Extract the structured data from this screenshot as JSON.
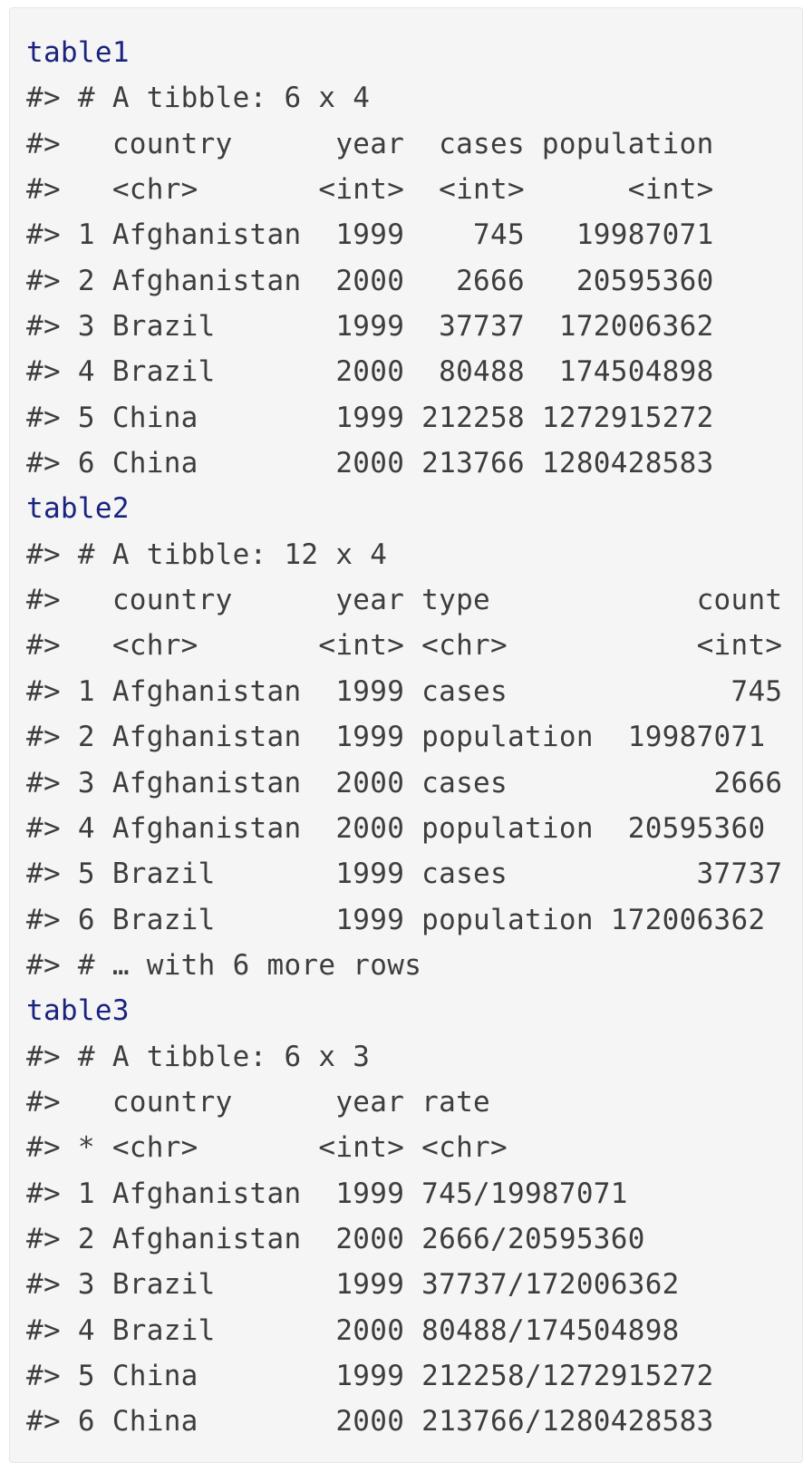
{
  "console": {
    "colors": {
      "background": "#f5f5f5",
      "command_text": "#1a237e",
      "output_text": "#3d3d3d"
    },
    "lines": [
      {
        "kind": "command",
        "text": "table1"
      },
      {
        "kind": "output",
        "text": "#> # A tibble: 6 x 4"
      },
      {
        "kind": "output",
        "text": "#>   country      year  cases population"
      },
      {
        "kind": "output",
        "text": "#>   <chr>       <int>  <int>      <int>"
      },
      {
        "kind": "output",
        "text": "#> 1 Afghanistan  1999    745   19987071"
      },
      {
        "kind": "output",
        "text": "#> 2 Afghanistan  2000   2666   20595360"
      },
      {
        "kind": "output",
        "text": "#> 3 Brazil       1999  37737  172006362"
      },
      {
        "kind": "output",
        "text": "#> 4 Brazil       2000  80488  174504898"
      },
      {
        "kind": "output",
        "text": "#> 5 China        1999 212258 1272915272"
      },
      {
        "kind": "output",
        "text": "#> 6 China        2000 213766 1280428583"
      },
      {
        "kind": "command",
        "text": "table2"
      },
      {
        "kind": "output",
        "text": "#> # A tibble: 12 x 4"
      },
      {
        "kind": "output",
        "text": "#>   country      year type            count"
      },
      {
        "kind": "output",
        "text": "#>   <chr>       <int> <chr>           <int>"
      },
      {
        "kind": "output",
        "text": "#> 1 Afghanistan  1999 cases             745"
      },
      {
        "kind": "output",
        "text": "#> 2 Afghanistan  1999 population  19987071"
      },
      {
        "kind": "output",
        "text": "#> 3 Afghanistan  2000 cases            2666"
      },
      {
        "kind": "output",
        "text": "#> 4 Afghanistan  2000 population  20595360"
      },
      {
        "kind": "output",
        "text": "#> 5 Brazil       1999 cases           37737"
      },
      {
        "kind": "output",
        "text": "#> 6 Brazil       1999 population 172006362"
      },
      {
        "kind": "output",
        "text": "#> # … with 6 more rows"
      },
      {
        "kind": "command",
        "text": "table3"
      },
      {
        "kind": "output",
        "text": "#> # A tibble: 6 x 3"
      },
      {
        "kind": "output",
        "text": "#>   country      year rate"
      },
      {
        "kind": "output",
        "text": "#> * <chr>       <int> <chr>"
      },
      {
        "kind": "output",
        "text": "#> 1 Afghanistan  1999 745/19987071"
      },
      {
        "kind": "output",
        "text": "#> 2 Afghanistan  2000 2666/20595360"
      },
      {
        "kind": "output",
        "text": "#> 3 Brazil       1999 37737/172006362"
      },
      {
        "kind": "output",
        "text": "#> 4 Brazil       2000 80488/174504898"
      },
      {
        "kind": "output",
        "text": "#> 5 China        1999 212258/1272915272"
      },
      {
        "kind": "output",
        "text": "#> 6 China        2000 213766/1280428583"
      }
    ]
  }
}
